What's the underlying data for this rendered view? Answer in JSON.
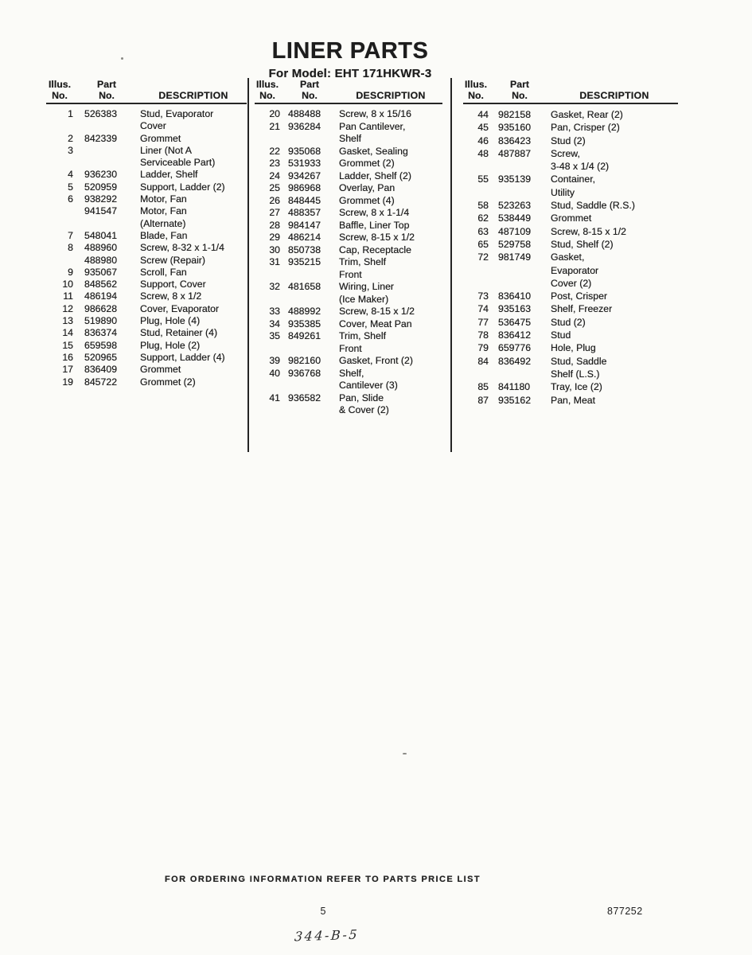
{
  "page": {
    "title": "LINER PARTS",
    "subtitle": "For Model: EHT 171HKWR-3"
  },
  "table": {
    "headers": {
      "illus_line1": "Illus.",
      "illus_line2": "No.",
      "part_line1": "Part",
      "part_line2": "No.",
      "description": "DESCRIPTION"
    },
    "columns": [
      {
        "rows": [
          {
            "illus": "1",
            "part": "526383",
            "desc": [
              "Stud, Evaporator",
              "Cover"
            ]
          },
          {
            "illus": "2",
            "part": "842339",
            "desc": [
              "Grommet"
            ]
          },
          {
            "illus": "3",
            "part": "",
            "desc": [
              "Liner (Not A",
              "Serviceable Part)"
            ]
          },
          {
            "illus": "4",
            "part": "936230",
            "desc": [
              "Ladder, Shelf"
            ]
          },
          {
            "illus": "5",
            "part": "520959",
            "desc": [
              "Support, Ladder (2)"
            ]
          },
          {
            "illus": "6",
            "part": "938292",
            "desc": [
              "Motor, Fan"
            ]
          },
          {
            "illus": "",
            "part": "941547",
            "desc": [
              "Motor, Fan",
              "(Alternate)"
            ]
          },
          {
            "illus": "7",
            "part": "548041",
            "desc": [
              "Blade, Fan"
            ]
          },
          {
            "illus": "8",
            "part": "488960",
            "desc": [
              "Screw, 8-32 x 1-1/4"
            ]
          },
          {
            "illus": "",
            "part": "488980",
            "desc": [
              "Screw (Repair)"
            ]
          },
          {
            "illus": "9",
            "part": "935067",
            "desc": [
              "Scroll, Fan"
            ]
          },
          {
            "illus": "10",
            "part": "848562",
            "desc": [
              "Support, Cover"
            ]
          },
          {
            "illus": "11",
            "part": "486194",
            "desc": [
              "Screw, 8 x 1/2"
            ]
          },
          {
            "illus": "12",
            "part": "986628",
            "desc": [
              "Cover, Evaporator"
            ]
          },
          {
            "illus": "13",
            "part": "519890",
            "desc": [
              "Plug, Hole (4)"
            ]
          },
          {
            "illus": "14",
            "part": "836374",
            "desc": [
              "Stud, Retainer (4)"
            ]
          },
          {
            "illus": "15",
            "part": "659598",
            "desc": [
              "Plug, Hole (2)"
            ]
          },
          {
            "illus": "16",
            "part": "520965",
            "desc": [
              "Support, Ladder (4)"
            ]
          },
          {
            "illus": "17",
            "part": "836409",
            "desc": [
              "Grommet"
            ]
          },
          {
            "illus": "19",
            "part": "845722",
            "desc": [
              "Grommet (2)"
            ]
          }
        ]
      },
      {
        "rows": [
          {
            "illus": "20",
            "part": "488488",
            "desc": [
              "Screw, 8 x 15/16"
            ]
          },
          {
            "illus": "21",
            "part": "936284",
            "desc": [
              "Pan Cantilever,",
              "Shelf"
            ]
          },
          {
            "illus": "22",
            "part": "935068",
            "desc": [
              "Gasket, Sealing"
            ]
          },
          {
            "illus": "23",
            "part": "531933",
            "desc": [
              "Grommet (2)"
            ]
          },
          {
            "illus": "24",
            "part": "934267",
            "desc": [
              "Ladder, Shelf (2)"
            ]
          },
          {
            "illus": "25",
            "part": "986968",
            "desc": [
              "Overlay, Pan"
            ]
          },
          {
            "illus": "26",
            "part": "848445",
            "desc": [
              "Grommet (4)"
            ]
          },
          {
            "illus": "27",
            "part": "488357",
            "desc": [
              "Screw, 8 x 1-1/4"
            ]
          },
          {
            "illus": "28",
            "part": "984147",
            "desc": [
              "Baffle, Liner Top"
            ]
          },
          {
            "illus": "29",
            "part": "486214",
            "desc": [
              "Screw, 8-15 x 1/2"
            ]
          },
          {
            "illus": "30",
            "part": "850738",
            "desc": [
              "Cap, Receptacle"
            ]
          },
          {
            "illus": "31",
            "part": "935215",
            "desc": [
              "Trim, Shelf",
              "Front"
            ]
          },
          {
            "illus": "32",
            "part": "481658",
            "desc": [
              "Wiring, Liner",
              "(Ice Maker)"
            ]
          },
          {
            "illus": "33",
            "part": "488992",
            "desc": [
              "Screw, 8-15 x 1/2"
            ]
          },
          {
            "illus": "34",
            "part": "935385",
            "desc": [
              "Cover, Meat Pan"
            ]
          },
          {
            "illus": "35",
            "part": "849261",
            "desc": [
              "Trim, Shelf",
              "Front"
            ]
          },
          {
            "illus": "39",
            "part": "982160",
            "desc": [
              "Gasket, Front (2)"
            ]
          },
          {
            "illus": "40",
            "part": "936768",
            "desc": [
              "Shelf,",
              "Cantilever (3)"
            ]
          },
          {
            "illus": "41",
            "part": "936582",
            "desc": [
              "Pan, Slide",
              "& Cover (2)"
            ]
          }
        ]
      },
      {
        "rows": [
          {
            "illus": "44",
            "part": "982158",
            "desc": [
              "Gasket, Rear (2)"
            ]
          },
          {
            "illus": "45",
            "part": "935160",
            "desc": [
              "Pan, Crisper (2)"
            ]
          },
          {
            "illus": "46",
            "part": "836423",
            "desc": [
              "Stud (2)"
            ]
          },
          {
            "illus": "48",
            "part": "487887",
            "desc": [
              "Screw,",
              "3-48 x 1/4 (2)"
            ]
          },
          {
            "illus": "55",
            "part": "935139",
            "desc": [
              "Container,",
              "Utility"
            ]
          },
          {
            "illus": "58",
            "part": "523263",
            "desc": [
              "Stud, Saddle (R.S.)"
            ]
          },
          {
            "illus": "62",
            "part": "538449",
            "desc": [
              "Grommet"
            ]
          },
          {
            "illus": "63",
            "part": "487109",
            "desc": [
              "Screw, 8-15 x 1/2"
            ]
          },
          {
            "illus": "65",
            "part": "529758",
            "desc": [
              "Stud, Shelf (2)"
            ]
          },
          {
            "illus": "72",
            "part": "981749",
            "desc": [
              "Gasket,",
              "Evaporator",
              "Cover (2)"
            ]
          },
          {
            "illus": "73",
            "part": "836410",
            "desc": [
              "Post, Crisper"
            ]
          },
          {
            "illus": "74",
            "part": "935163",
            "desc": [
              "Shelf, Freezer"
            ]
          },
          {
            "illus": "77",
            "part": "536475",
            "desc": [
              "Stud (2)"
            ]
          },
          {
            "illus": "78",
            "part": "836412",
            "desc": [
              "Stud"
            ]
          },
          {
            "illus": "79",
            "part": "659776",
            "desc": [
              "Hole, Plug"
            ]
          },
          {
            "illus": "84",
            "part": "836492",
            "desc": [
              "Stud, Saddle",
              "Shelf (L.S.)"
            ]
          },
          {
            "illus": "85",
            "part": "841180",
            "desc": [
              "Tray, Ice (2)"
            ]
          },
          {
            "illus": "87",
            "part": "935162",
            "desc": [
              "Pan, Meat"
            ]
          }
        ]
      }
    ]
  },
  "footer": {
    "ordering_note": "FOR ORDERING INFORMATION REFER TO PARTS PRICE LIST",
    "page_number": "5",
    "doc_number": "877252",
    "handwritten_note": "344-B-5"
  },
  "colors": {
    "paper": "#fbfbf8",
    "ink": "#1d1d1d"
  }
}
